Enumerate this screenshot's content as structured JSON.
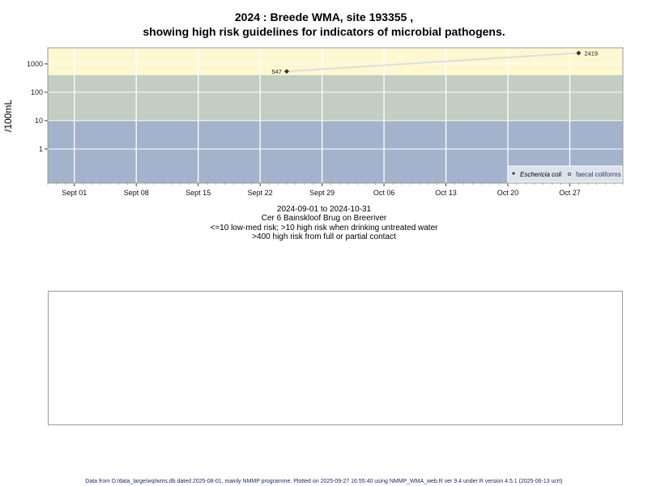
{
  "chart_data": {
    "type": "line",
    "title": "2024 : Breede WMA, site 193355 ,",
    "subtitle": "showing high risk guidelines for indicators of microbial pathogens.",
    "ylabel": "/100mL",
    "y_scale": "log",
    "ylim": [
      0.063,
      3700
    ],
    "xlim": [
      "2024-08-29",
      "2024-11-02"
    ],
    "y_ticks": [
      1,
      10,
      100,
      1000
    ],
    "y_tick_labels": [
      "1",
      "10",
      "100",
      "1000"
    ],
    "x_ticks": [
      "2024-09-01",
      "2024-09-08",
      "2024-09-15",
      "2024-09-22",
      "2024-09-29",
      "2024-10-06",
      "2024-10-13",
      "2024-10-20",
      "2024-10-27"
    ],
    "x_tick_labels": [
      "Sept 01",
      "Sept 08",
      "Sept 15",
      "Sept 22",
      "Sept 29",
      "Oct 06",
      "Oct 13",
      "Oct 20",
      "Oct 27"
    ],
    "grid": true,
    "bands": [
      {
        "from": 400,
        "to": 3700,
        "color": "#fdf8d0"
      },
      {
        "from": 10,
        "to": 400,
        "color": "#c3cdc1"
      },
      {
        "from": 0.063,
        "to": 10,
        "color": "#a3b3cb"
      }
    ],
    "series": [
      {
        "name": "Eschericia coli",
        "marker": "filled-diamond",
        "color": "#333333",
        "line_color": "#dddddd",
        "x": [
          "2024-09-25",
          "2024-10-28"
        ],
        "y": [
          547,
          2419
        ],
        "labels": [
          "547",
          "2419"
        ]
      },
      {
        "name": "faecal coliforms",
        "marker": "open-circle",
        "color": "#333333",
        "x": [],
        "y": []
      }
    ],
    "legend": "bottom-right",
    "xlabel_lines": [
      "2024-09-01 to 2024-10-31",
      "Cer 6 Bainskloof Brug on Breeriver",
      "<=10 low-med risk; >10 high risk when drinking untreated water",
      ">400 high risk from full or partial contact"
    ]
  },
  "footer": "Data from D:/data_large/wq/wms.db dated 2025-08-01, mainly NMMP programme. Plotted on 2025-09-27 16:55:40 using NMMP_WMA_web.R ver 9.4 under R version 4.5.1 (2025-06-13 ucrt)"
}
